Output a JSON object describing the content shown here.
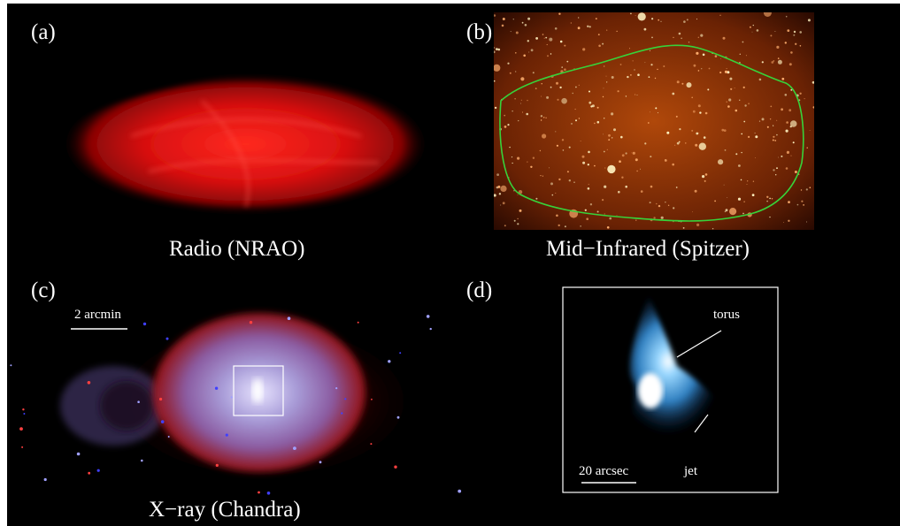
{
  "panels": [
    {
      "id": "a",
      "letter": "(a)",
      "caption": "Radio (NRAO)"
    },
    {
      "id": "b",
      "letter": "(b)",
      "caption": "Mid−Infrared (Spitzer)"
    },
    {
      "id": "c",
      "letter": "(c)",
      "caption": "X−ray (Chandra)",
      "scale_label": "2 arcmin"
    },
    {
      "id": "d",
      "letter": "(d)",
      "scale_label": "20 arcsec",
      "annotations": {
        "torus": "torus",
        "jet": "jet"
      }
    }
  ],
  "colors": {
    "background": "#000000",
    "radio": "#e01010",
    "infrared_base": "#7a2a05",
    "infrared_contour": "#37d23a",
    "xray_core": "#c9c4f0",
    "xray_edge": "#b01818",
    "zoom": "#5ab6ef"
  }
}
